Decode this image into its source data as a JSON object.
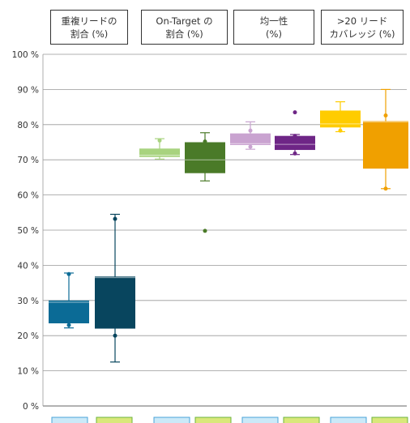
{
  "chart_data": {
    "type": "box",
    "headers": [
      "重複リードの\n割合 (%)",
      "On-Target の\n割合 (%)",
      "均一性\n(%)",
      ">20 リード\nカバレッジ (%)"
    ],
    "y_tick_labels": [
      "0 %",
      "10 %",
      "20 %",
      "30 %",
      "40 %",
      "50 %",
      "60 %",
      "70 %",
      "80 %",
      "90 %",
      "100 %"
    ],
    "ylim": [
      0,
      100
    ],
    "grid": true,
    "series": [
      {
        "color": "#0b6b96",
        "q1": 23.5,
        "median": 29.5,
        "q3": 30.0,
        "min": 22.2,
        "max": 37.8,
        "points": [
          37.5,
          23.0
        ]
      },
      {
        "color": "#08455e",
        "q1": 22.0,
        "median": 36.5,
        "q3": 36.8,
        "min": 12.5,
        "max": 54.5,
        "points": [
          53.2,
          20.0
        ]
      },
      {
        "color": "#a8d37f",
        "q1": 70.8,
        "median": 71.3,
        "q3": 73.2,
        "min": 70.2,
        "max": 76.0,
        "points": [
          75.5
        ]
      },
      {
        "color": "#4a7a28",
        "q1": 66.2,
        "median": 70.0,
        "q3": 75.0,
        "min": 64.0,
        "max": 77.7,
        "points": [
          75.2,
          49.8
        ]
      },
      {
        "color": "#c9a3d0",
        "q1": 74.2,
        "median": 74.6,
        "q3": 77.5,
        "min": 73.0,
        "max": 80.8,
        "points": [
          78.3,
          73.7
        ]
      },
      {
        "color": "#6e2686",
        "q1": 72.8,
        "median": 74.4,
        "q3": 76.8,
        "min": 71.5,
        "max": 77.2,
        "points": [
          83.5,
          76.8,
          71.8
        ]
      },
      {
        "color": "#ffcc00",
        "q1": 79.2,
        "median": 80.2,
        "q3": 84.0,
        "min": 78.0,
        "max": 86.5,
        "points": [
          78.3
        ]
      },
      {
        "color": "#f0a000",
        "q1": 67.5,
        "median": 80.8,
        "q3": 81.0,
        "min": 61.8,
        "max": 90.0,
        "points": [
          82.6,
          61.8
        ]
      }
    ],
    "bottom_legend_colors": [
      "#cbe9f8",
      "#d9e87a",
      "#cbe9f8",
      "#d9e87a",
      "#cbe9f8",
      "#d9e87a",
      "#cbe9f8",
      "#d9e87a"
    ]
  }
}
